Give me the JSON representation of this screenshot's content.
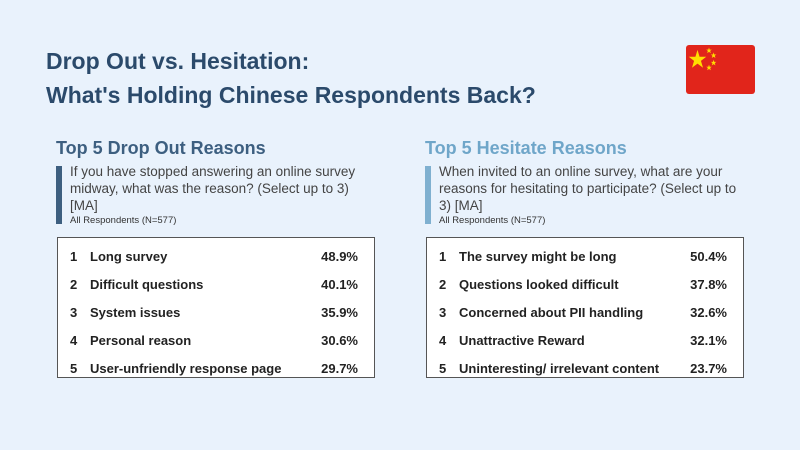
{
  "title": {
    "line1": "Drop Out vs. Hesitation:",
    "line2": "What's Holding Chinese Respondents Back?"
  },
  "flag": {
    "name": "china-flag",
    "red": "#e1251b",
    "yellow": "#ffde00"
  },
  "chart_data": [
    {
      "type": "table",
      "title": "Top 5 Drop Out Reasons",
      "question": "If you have stopped answering an online survey midway, what was the reason? (Select up to 3) [MA]",
      "base": "All  Respondents (N=577)",
      "accent": "#3d5f80",
      "rows": [
        {
          "rank": "1",
          "label": "Long survey",
          "value": "48.9%"
        },
        {
          "rank": "2",
          "label": "Difficult questions",
          "value": "40.1%"
        },
        {
          "rank": "3",
          "label": "System issues",
          "value": "35.9%"
        },
        {
          "rank": "4",
          "label": "Personal reason",
          "value": "30.6%"
        },
        {
          "rank": "5",
          "label": "User-unfriendly response page",
          "value": "29.7%"
        }
      ]
    },
    {
      "type": "table",
      "title": "Top 5 Hesitate Reasons",
      "question": "When invited to an online survey, what are your reasons for hesitating to participate? (Select up to 3) [MA]",
      "base": "All  Respondents (N=577)",
      "accent": "#6fa6c9",
      "rows": [
        {
          "rank": "1",
          "label": "The survey might be long",
          "value": "50.4%"
        },
        {
          "rank": "2",
          "label": "Questions looked difficult",
          "value": "37.8%"
        },
        {
          "rank": "3",
          "label": "Concerned about PII  handling",
          "value": "32.6%"
        },
        {
          "rank": "4",
          "label": "Unattractive Reward",
          "value": "32.1%"
        },
        {
          "rank": "5",
          "label": "Uninteresting/ irrelevant content",
          "value": "23.7%"
        }
      ]
    }
  ]
}
